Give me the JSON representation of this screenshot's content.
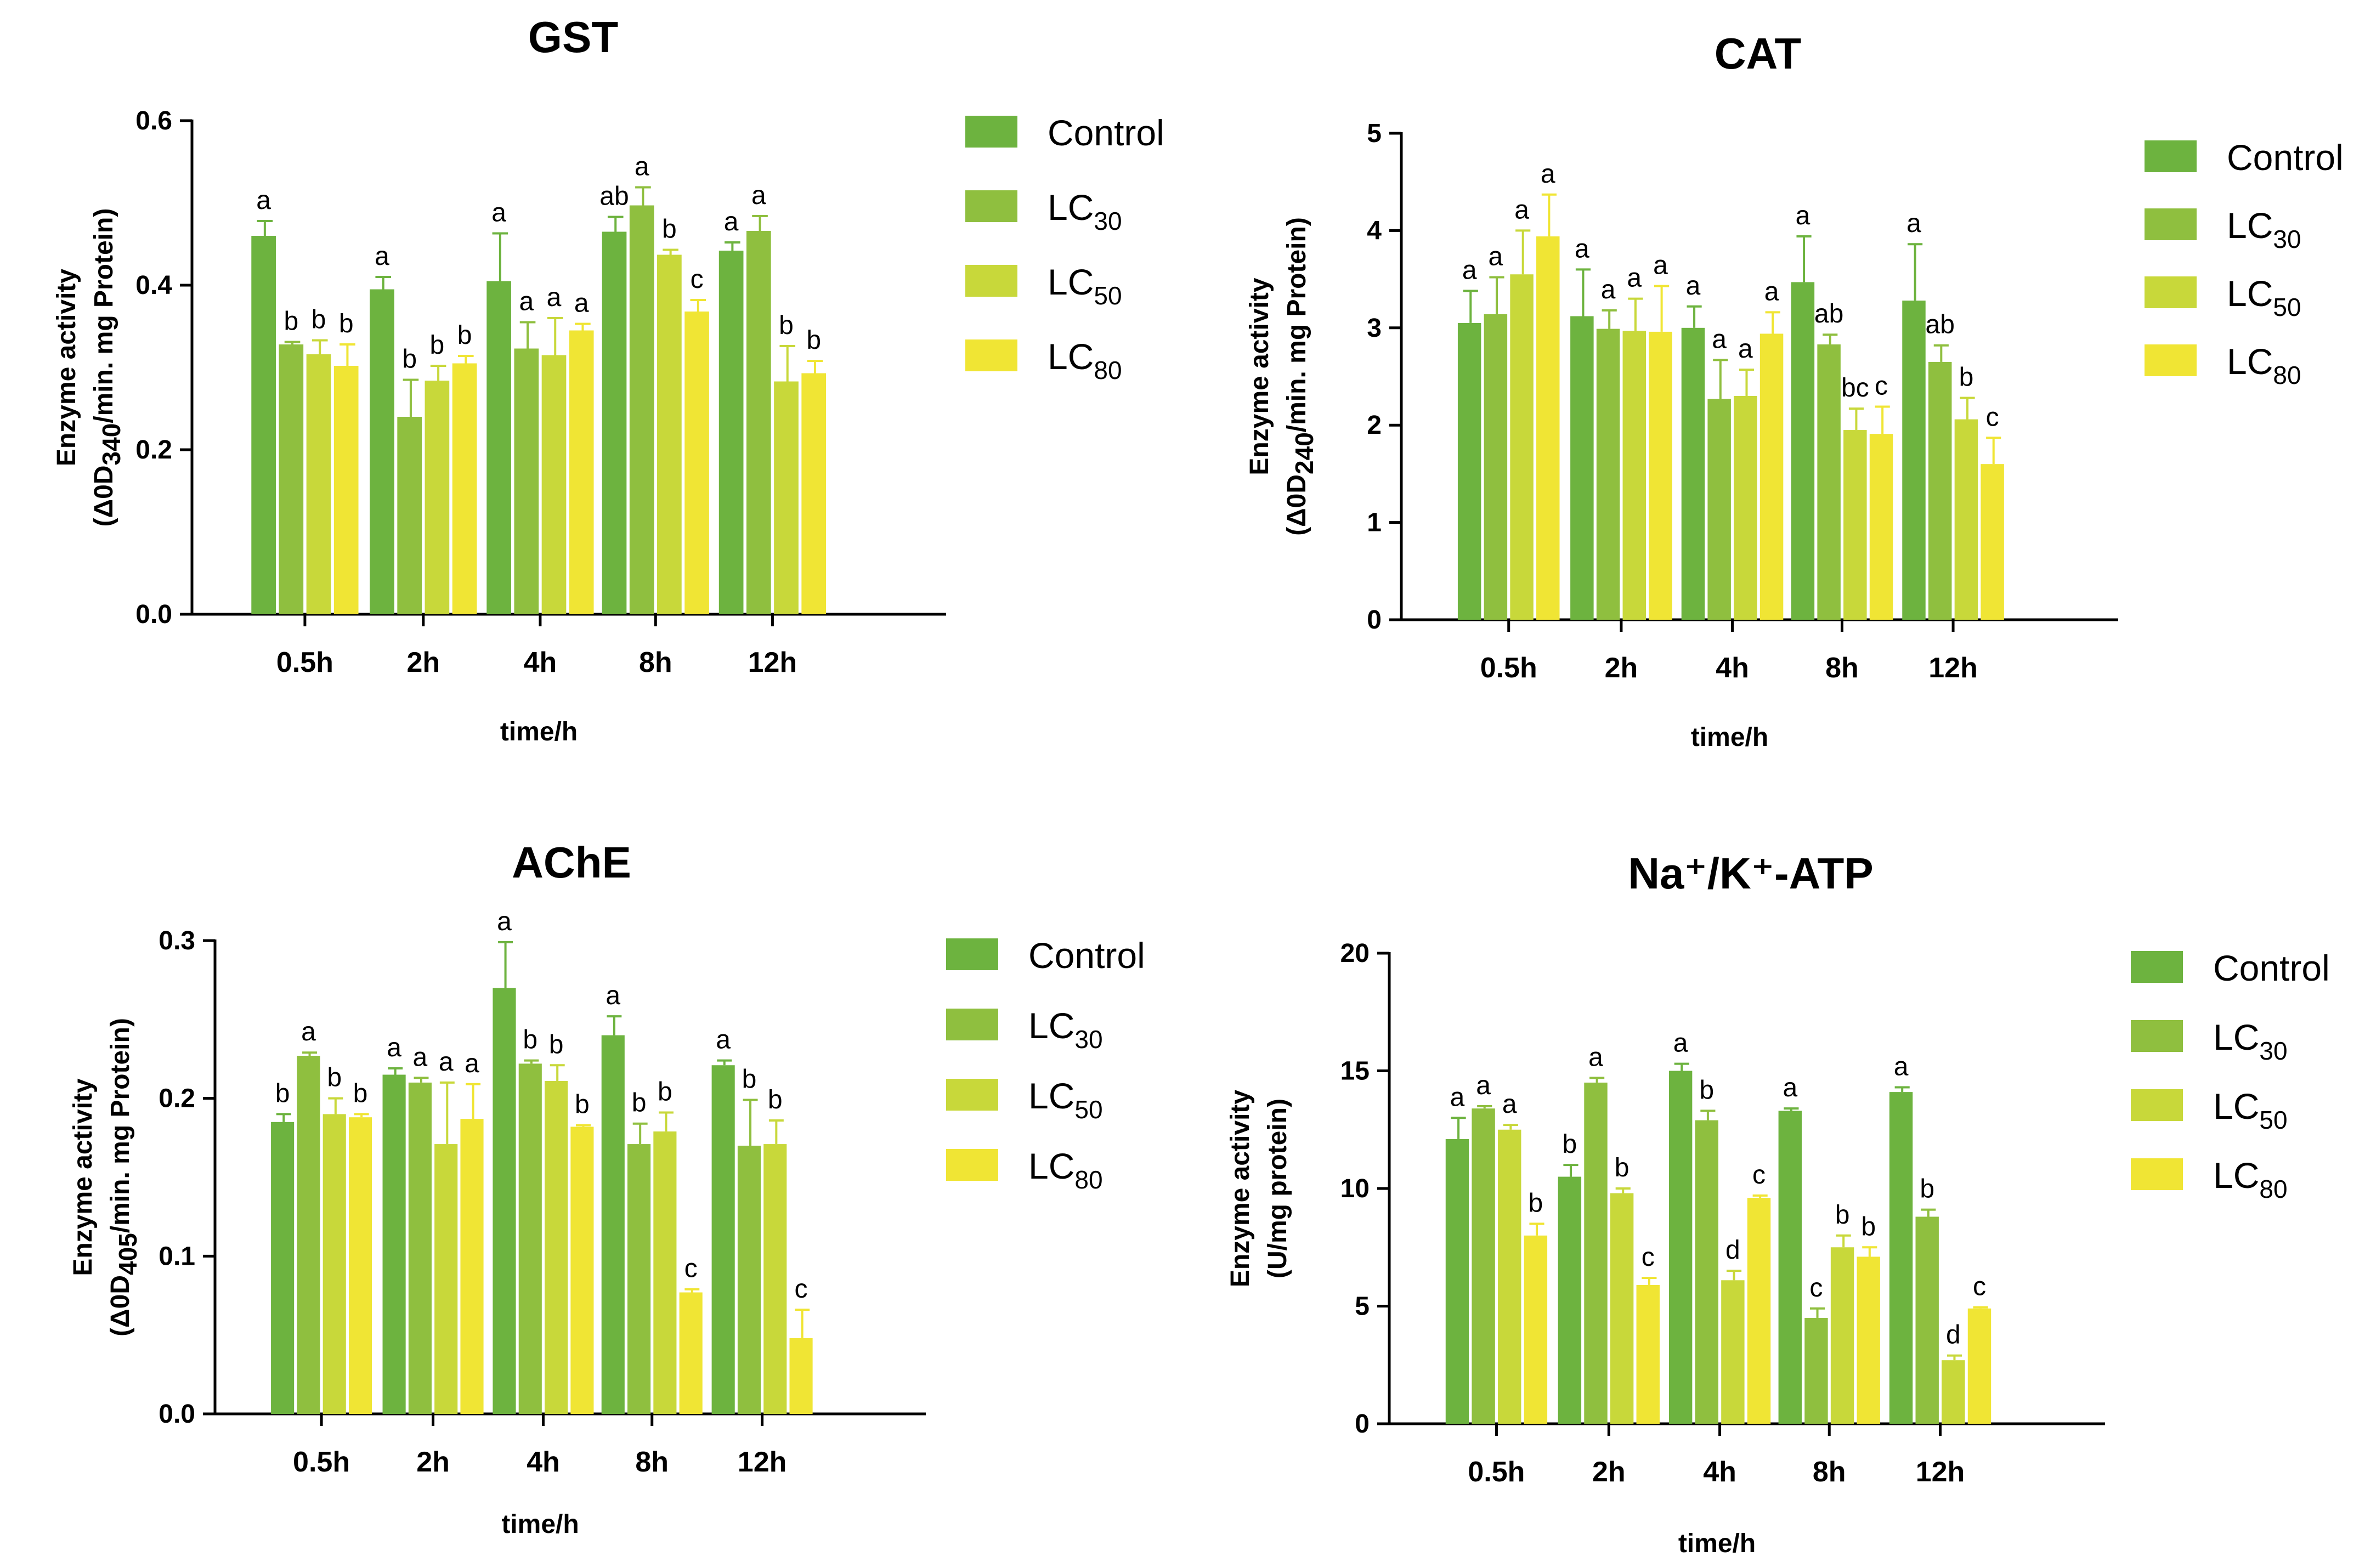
{
  "series_names": [
    "Control",
    "LC30",
    "LC50",
    "LC80"
  ],
  "legend": [
    {
      "base": "Control",
      "sub": ""
    },
    {
      "base": "LC",
      "sub": "30"
    },
    {
      "base": "LC",
      "sub": "50"
    },
    {
      "base": "LC",
      "sub": "80"
    }
  ],
  "colors": {
    "Control": "#6db33f",
    "LC30": "#8fbf3f",
    "LC50": "#c8d83a",
    "LC80": "#f0e534",
    "axis": "#000000",
    "errorbar": "#000000"
  },
  "chart_data": [
    {
      "type": "bar",
      "title": "GST",
      "xlabel": "time/h",
      "ylabel": {
        "line1": "Enzyme activity",
        "pre": "(Δ0D",
        "sub": "340",
        "post": "/min. mg Protein)"
      },
      "categories": [
        "0.5h",
        "2h",
        "4h",
        "8h",
        "12h"
      ],
      "ylim": [
        0,
        0.6
      ],
      "yticks": [
        "0.0",
        "0.2",
        "0.4",
        "0.6"
      ],
      "ytick_values": [
        0,
        0.2,
        0.4,
        0.6
      ],
      "series": [
        {
          "name": "Control",
          "values": [
            0.46,
            0.395,
            0.405,
            0.465,
            0.442
          ],
          "errors": [
            0.018,
            0.015,
            0.058,
            0.018,
            0.01
          ],
          "letters": [
            "a",
            "a",
            "a",
            "ab",
            "a"
          ]
        },
        {
          "name": "LC30",
          "values": [
            0.328,
            0.24,
            0.323,
            0.497,
            0.466
          ],
          "errors": [
            0.003,
            0.045,
            0.032,
            0.022,
            0.018
          ],
          "letters": [
            "b",
            "b",
            "a",
            "a",
            "a"
          ]
        },
        {
          "name": "LC50",
          "values": [
            0.316,
            0.284,
            0.315,
            0.437,
            0.283
          ],
          "errors": [
            0.017,
            0.018,
            0.045,
            0.006,
            0.043
          ],
          "letters": [
            "b",
            "b",
            "a",
            "b",
            "b"
          ]
        },
        {
          "name": "LC80",
          "values": [
            0.302,
            0.305,
            0.345,
            0.368,
            0.293
          ],
          "errors": [
            0.026,
            0.009,
            0.008,
            0.014,
            0.015
          ],
          "letters": [
            "b",
            "b",
            "a",
            "c",
            "b"
          ]
        }
      ]
    },
    {
      "type": "bar",
      "title": "CAT",
      "xlabel": "time/h",
      "ylabel": {
        "line1": "Enzyme activity",
        "pre": "(Δ0D",
        "sub": "240",
        "post": "/min. mg Protein)"
      },
      "categories": [
        "0.5h",
        "2h",
        "4h",
        "8h",
        "12h"
      ],
      "ylim": [
        0,
        5
      ],
      "yticks": [
        "0",
        "1",
        "2",
        "3",
        "4",
        "5"
      ],
      "ytick_values": [
        0,
        1,
        2,
        3,
        4,
        5
      ],
      "series": [
        {
          "name": "Control",
          "values": [
            3.05,
            3.12,
            3.0,
            3.47,
            3.28
          ],
          "errors": [
            0.33,
            0.48,
            0.22,
            0.47,
            0.58
          ],
          "letters": [
            "a",
            "a",
            "a",
            "a",
            "a"
          ]
        },
        {
          "name": "LC30",
          "values": [
            3.14,
            2.99,
            2.27,
            2.83,
            2.65
          ],
          "errors": [
            0.38,
            0.19,
            0.4,
            0.1,
            0.17
          ],
          "letters": [
            "a",
            "a",
            "a",
            "ab",
            "ab"
          ]
        },
        {
          "name": "LC50",
          "values": [
            3.55,
            2.97,
            2.3,
            1.95,
            2.06
          ],
          "errors": [
            0.45,
            0.33,
            0.27,
            0.22,
            0.22
          ],
          "letters": [
            "a",
            "a",
            "a",
            "bc",
            "b"
          ]
        },
        {
          "name": "LC80",
          "values": [
            3.94,
            2.96,
            2.94,
            1.91,
            1.6
          ],
          "errors": [
            0.43,
            0.47,
            0.22,
            0.28,
            0.27
          ],
          "letters": [
            "a",
            "a",
            "a",
            "c",
            "c"
          ]
        }
      ]
    },
    {
      "type": "bar",
      "title": "AChE",
      "xlabel": "time/h",
      "ylabel": {
        "line1": "Enzyme activity",
        "pre": "(Δ0D",
        "sub": "405",
        "post": "/min. mg Protein)"
      },
      "categories": [
        "0.5h",
        "2h",
        "4h",
        "8h",
        "12h"
      ],
      "ylim": [
        0,
        0.3
      ],
      "yticks": [
        "0.0",
        "0.1",
        "0.2",
        "0.3"
      ],
      "ytick_values": [
        0,
        0.1,
        0.2,
        0.3
      ],
      "series": [
        {
          "name": "Control",
          "values": [
            0.185,
            0.215,
            0.27,
            0.24,
            0.221
          ],
          "errors": [
            0.005,
            0.004,
            0.029,
            0.012,
            0.003
          ],
          "letters": [
            "b",
            "a",
            "a",
            "a",
            "a"
          ]
        },
        {
          "name": "LC30",
          "values": [
            0.227,
            0.21,
            0.222,
            0.171,
            0.17
          ],
          "errors": [
            0.002,
            0.003,
            0.002,
            0.013,
            0.029
          ],
          "letters": [
            "a",
            "a",
            "b",
            "b",
            "b"
          ]
        },
        {
          "name": "LC50",
          "values": [
            0.19,
            0.171,
            0.211,
            0.179,
            0.171
          ],
          "errors": [
            0.01,
            0.039,
            0.01,
            0.012,
            0.015
          ],
          "letters": [
            "b",
            "a",
            "b",
            "b",
            "b"
          ]
        },
        {
          "name": "LC80",
          "values": [
            0.188,
            0.187,
            0.182,
            0.077,
            0.048
          ],
          "errors": [
            0.002,
            0.022,
            0.001,
            0.002,
            0.018
          ],
          "letters": [
            "b",
            "a",
            "b",
            "c",
            "c"
          ]
        }
      ]
    },
    {
      "type": "bar",
      "title": "Na⁺/K⁺-ATP",
      "xlabel": "time/h",
      "ylabel": {
        "line1": "Enzyme activity",
        "pre": "(U/mg protein)",
        "sub": "",
        "post": ""
      },
      "categories": [
        "0.5h",
        "2h",
        "4h",
        "8h",
        "12h"
      ],
      "ylim": [
        0,
        20
      ],
      "yticks": [
        "0",
        "5",
        "10",
        "15",
        "20"
      ],
      "ytick_values": [
        0,
        5,
        10,
        15,
        20
      ],
      "series": [
        {
          "name": "Control",
          "values": [
            12.1,
            10.5,
            15.0,
            13.3,
            14.1
          ],
          "errors": [
            0.9,
            0.5,
            0.3,
            0.1,
            0.2
          ],
          "letters": [
            "a",
            "b",
            "a",
            "a",
            "a"
          ]
        },
        {
          "name": "LC30",
          "values": [
            13.4,
            14.5,
            12.9,
            4.5,
            8.8
          ],
          "errors": [
            0.1,
            0.2,
            0.4,
            0.4,
            0.3
          ],
          "letters": [
            "a",
            "a",
            "b",
            "c",
            "b"
          ]
        },
        {
          "name": "LC50",
          "values": [
            12.5,
            9.8,
            6.1,
            7.5,
            2.7
          ],
          "errors": [
            0.2,
            0.2,
            0.4,
            0.5,
            0.2
          ],
          "letters": [
            "a",
            "b",
            "d",
            "b",
            "d"
          ]
        },
        {
          "name": "LC80",
          "values": [
            8.0,
            5.9,
            9.6,
            7.1,
            4.9
          ],
          "errors": [
            0.5,
            0.3,
            0.1,
            0.4,
            0.05
          ],
          "letters": [
            "b",
            "c",
            "c",
            "b",
            "c"
          ]
        }
      ]
    }
  ]
}
